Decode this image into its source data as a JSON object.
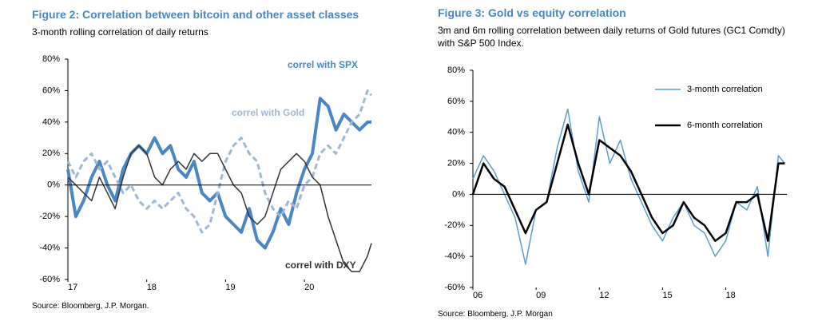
{
  "chart_data": [
    {
      "type": "line",
      "title": "Figure 2: Correlation between bitcoin and other asset classes",
      "subtitle": "3-month rolling correlation of daily returns",
      "source": "Source: Bloomberg, J.P. Morgan.",
      "x": [
        17.0,
        17.1,
        17.2,
        17.3,
        17.4,
        17.5,
        17.6,
        17.7,
        17.8,
        17.9,
        18.0,
        18.1,
        18.2,
        18.3,
        18.4,
        18.5,
        18.6,
        18.7,
        18.8,
        18.9,
        19.0,
        19.1,
        19.2,
        19.3,
        19.4,
        19.5,
        19.6,
        19.7,
        19.8,
        19.9,
        20.0,
        20.1,
        20.2,
        20.3,
        20.4,
        20.5,
        20.6,
        20.7,
        20.8,
        20.85
      ],
      "series": [
        {
          "name": "correl with SPX",
          "color": "#4a86c5",
          "linestyle": "solid",
          "values": [
            10,
            -20,
            -10,
            5,
            15,
            0,
            -10,
            10,
            20,
            25,
            20,
            30,
            20,
            25,
            10,
            5,
            15,
            -5,
            -10,
            -5,
            -20,
            -25,
            -30,
            -15,
            -35,
            -40,
            -30,
            -15,
            -25,
            -5,
            10,
            20,
            55,
            50,
            35,
            45,
            40,
            35,
            40,
            40
          ]
        },
        {
          "name": "correl with Gold",
          "color": "#9fb6d6",
          "linestyle": "dashed",
          "values": [
            15,
            5,
            15,
            20,
            10,
            15,
            5,
            -5,
            0,
            -10,
            -15,
            -10,
            -15,
            -10,
            -5,
            -15,
            -20,
            -30,
            -25,
            -5,
            15,
            25,
            30,
            20,
            15,
            -5,
            -15,
            -20,
            -10,
            -15,
            0,
            5,
            20,
            25,
            20,
            30,
            40,
            45,
            60,
            57
          ]
        },
        {
          "name": "correl with DXY",
          "color": "#333333",
          "linestyle": "solid",
          "values": [
            5,
            0,
            -5,
            -10,
            5,
            -5,
            -15,
            5,
            20,
            25,
            20,
            5,
            0,
            10,
            15,
            10,
            20,
            15,
            20,
            20,
            10,
            0,
            -5,
            -20,
            -25,
            -20,
            -5,
            10,
            15,
            20,
            15,
            5,
            0,
            -20,
            -35,
            -50,
            -55,
            -55,
            -45,
            -37
          ]
        }
      ],
      "xlim": [
        17,
        20.85
      ],
      "xticks": [
        17,
        18,
        19,
        20
      ],
      "ylim": [
        -60,
        80
      ],
      "yticks": [
        {
          "value": -60,
          "label": "-60%"
        },
        {
          "value": -40,
          "label": "-40%"
        },
        {
          "value": -20,
          "label": "-20%"
        },
        {
          "value": 0,
          "label": "0%"
        },
        {
          "value": 20,
          "label": "20%"
        },
        {
          "value": 40,
          "label": "40%"
        },
        {
          "value": 60,
          "label": "60%"
        },
        {
          "value": 80,
          "label": "80%"
        }
      ],
      "legend": "inline"
    },
    {
      "type": "line",
      "title": "Figure 3: Gold vs equity correlation",
      "subtitle": "3m and 6m rolling correlation between daily returns of Gold futures (GC1 Comdty) with S&P 500 Index.",
      "source": "Source: Bloomberg, J.P. Morgan",
      "x": [
        2006.0,
        2006.5,
        2007.0,
        2007.5,
        2008.0,
        2008.5,
        2009.0,
        2009.5,
        2010.0,
        2010.5,
        2011.0,
        2011.5,
        2012.0,
        2012.5,
        2013.0,
        2013.5,
        2014.0,
        2014.5,
        2015.0,
        2015.5,
        2016.0,
        2016.5,
        2017.0,
        2017.5,
        2018.0,
        2018.5,
        2019.0,
        2019.5,
        2020.0,
        2020.5,
        2020.8
      ],
      "series": [
        {
          "name": "3-month correlation",
          "color": "#5b9bd5",
          "linestyle": "solid",
          "values": [
            10,
            25,
            15,
            0,
            -15,
            -45,
            -10,
            -5,
            30,
            55,
            15,
            -5,
            50,
            20,
            35,
            10,
            -5,
            -20,
            -30,
            -15,
            -5,
            -20,
            -25,
            -40,
            -30,
            -5,
            -10,
            5,
            -40,
            25,
            20
          ]
        },
        {
          "name": "6-month correlation",
          "color": "#000000",
          "linestyle": "solid",
          "values": [
            0,
            20,
            10,
            5,
            -10,
            -25,
            -10,
            -5,
            20,
            45,
            20,
            0,
            35,
            30,
            25,
            15,
            0,
            -15,
            -25,
            -20,
            -5,
            -15,
            -20,
            -30,
            -25,
            -5,
            -5,
            0,
            -30,
            20,
            20
          ]
        }
      ],
      "xlim": [
        2006,
        2020.9
      ],
      "xticks": [
        {
          "value": 2006,
          "label": "06"
        },
        {
          "value": 2009,
          "label": "09"
        },
        {
          "value": 2012,
          "label": "12"
        },
        {
          "value": 2015,
          "label": "15"
        },
        {
          "value": 2018,
          "label": "18"
        }
      ],
      "ylim": [
        -60,
        80
      ],
      "yticks": [
        {
          "value": -60,
          "label": "-60%"
        },
        {
          "value": -40,
          "label": "-40%"
        },
        {
          "value": -20,
          "label": "-20%"
        },
        {
          "value": 0,
          "label": "0%"
        },
        {
          "value": 20,
          "label": "20%"
        },
        {
          "value": 40,
          "label": "40%"
        },
        {
          "value": 60,
          "label": "60%"
        },
        {
          "value": 80,
          "label": "80%"
        }
      ],
      "legend": "upper right"
    }
  ]
}
